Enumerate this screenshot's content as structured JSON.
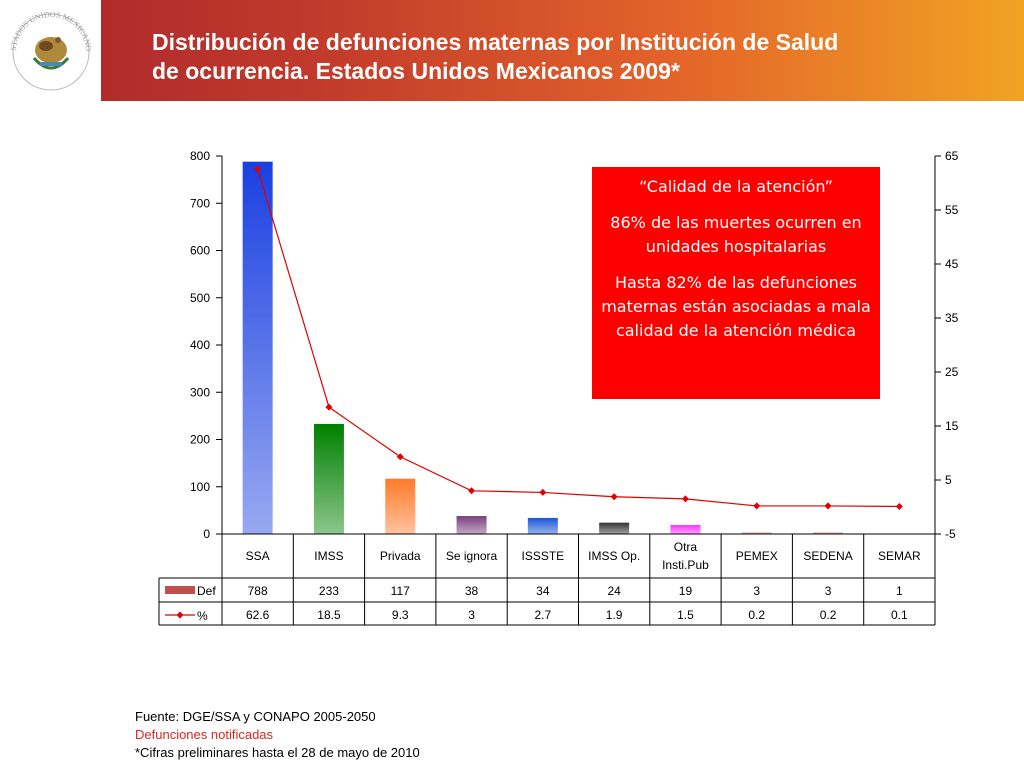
{
  "header": {
    "title_line1": "Distribución de defunciones maternas por Institución de Salud",
    "title_line2": "de ocurrencia. Estados Unidos Mexicanos 2009*",
    "seal_text": "ESTADOS UNIDOS MEXICANOS"
  },
  "chart_data": {
    "type": "bar",
    "categories": [
      "SSA",
      "IMSS",
      "Privada",
      "Se ignora",
      "ISSSTE",
      "IMSS Op.",
      "Otra Insti.Pub",
      "PEMEX",
      "SEDENA",
      "SEMAR"
    ],
    "series": [
      {
        "name": "Def",
        "type": "bar",
        "axis": "left",
        "values": [
          788,
          233,
          117,
          38,
          34,
          24,
          19,
          3,
          3,
          1
        ]
      },
      {
        "name": "%",
        "type": "line",
        "axis": "right",
        "values": [
          62.6,
          18.5,
          9.3,
          3,
          2.7,
          1.9,
          1.5,
          0.2,
          0.2,
          0.1
        ]
      }
    ],
    "table_values": {
      "Def": [
        "788",
        "233",
        "117",
        "38",
        "34",
        "24",
        "19",
        "3",
        "3",
        "1"
      ],
      "%": [
        "62.6",
        "18.5",
        "9.3",
        "3",
        "2.7",
        "1.9",
        "1.5",
        "0.2",
        "0.2",
        "0.1"
      ]
    },
    "bar_colors": [
      "#1a3fe0",
      "#008000",
      "#ff7a2a",
      "#7b3f7f",
      "#1a56d8",
      "#333333",
      "#ff33ff",
      "#d88080",
      "#d88080",
      "#d88080"
    ],
    "line_color": "#e00000",
    "ylim_left": [
      0,
      800
    ],
    "yticks_left": [
      0,
      100,
      200,
      300,
      400,
      500,
      600,
      700,
      800
    ],
    "ylim_right": [
      -5,
      65
    ],
    "yticks_right": [
      -5,
      5,
      15,
      25,
      35,
      45,
      55,
      65
    ],
    "grid": false,
    "legend": "in data table"
  },
  "callout": {
    "quote": "“Calidad de la atención”",
    "line2": "86% de las muertes ocurren en unidades hospitalarias",
    "line3": "Hasta 82% de las defunciones maternas están asociadas a mala calidad de la atención médica"
  },
  "footer": {
    "source": "Fuente: DGE/SSA y CONAPO 2005-2050",
    "note1": "Defunciones notificadas",
    "note2": "*Cifras preliminares hasta el 28 de mayo de 2010"
  }
}
